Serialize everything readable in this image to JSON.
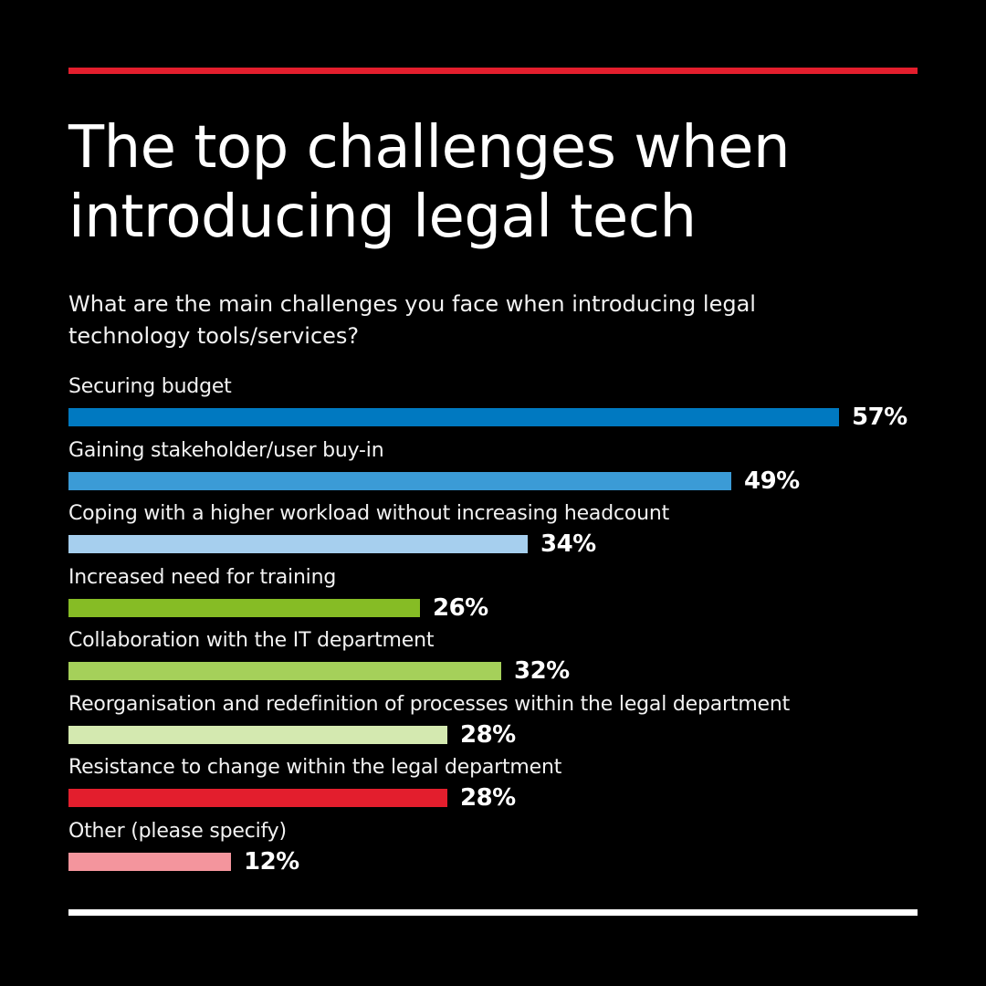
{
  "colors": {
    "background": "#000000",
    "top_rule": "#e31e2d",
    "bottom_rule": "#ffffff",
    "text": "#ffffff"
  },
  "chart_data": {
    "type": "bar",
    "orientation": "horizontal",
    "title": "The top challenges when\nintroducing legal tech",
    "subtitle": "What are the main challenges you face when introducing legal technology tools/services?",
    "categories": [
      "Securing budget",
      "Gaining stakeholder/user buy-in",
      "Coping with a higher workload without increasing headcount",
      "Increased need for training",
      "Collaboration with the IT department",
      "Reorganisation and redefinition of processes within the legal department",
      "Resistance to change within the legal department",
      "Other (please specify)"
    ],
    "values": [
      57,
      49,
      34,
      26,
      32,
      28,
      28,
      12
    ],
    "value_labels": [
      "57%",
      "49%",
      "34%",
      "26%",
      "32%",
      "28%",
      "28%",
      "12%"
    ],
    "bar_colors": [
      "#0079c1",
      "#3b9bd6",
      "#a6cfee",
      "#86bc25",
      "#a5d05a",
      "#d4e9b0",
      "#e31e2d",
      "#f4959d"
    ],
    "unit": "%",
    "xlim": [
      0,
      57
    ],
    "grid": false,
    "legend": false
  }
}
